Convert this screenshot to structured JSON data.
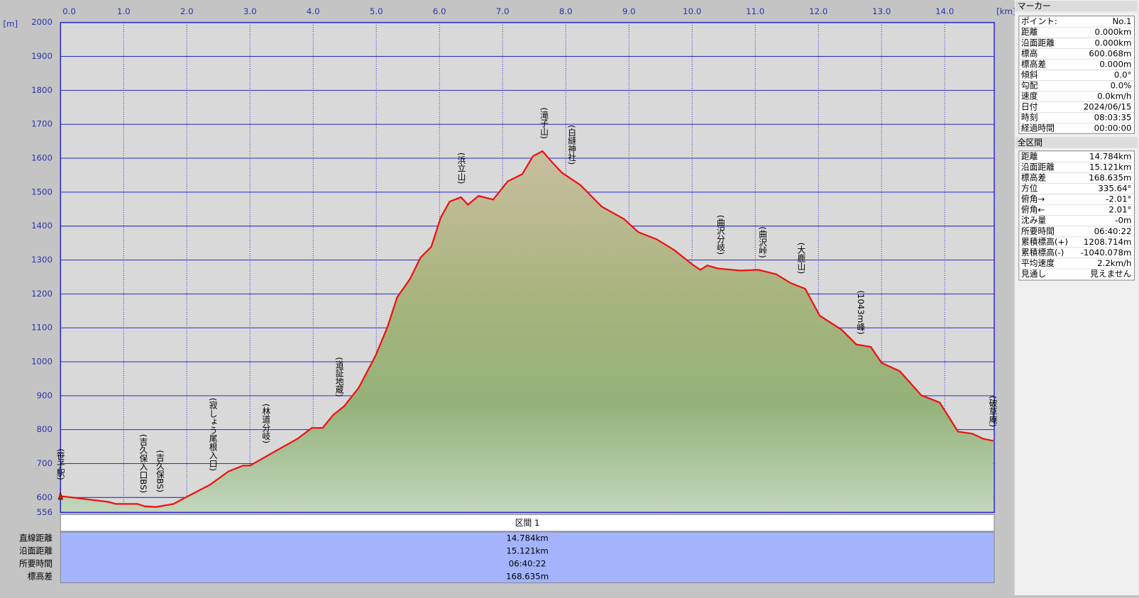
{
  "chart_data": {
    "type": "area",
    "x_unit": "[km]",
    "y_unit": "[m]",
    "x": [
      0,
      0.18,
      0.76,
      0.87,
      1.22,
      1.33,
      1.51,
      1.79,
      2.0,
      2.37,
      2.66,
      2.89,
      3.0,
      3.34,
      3.75,
      3.98,
      4.15,
      4.32,
      4.49,
      4.72,
      4.99,
      5.18,
      5.33,
      5.53,
      5.7,
      5.87,
      6.02,
      6.16,
      6.34,
      6.45,
      6.62,
      6.85,
      7.08,
      7.31,
      7.48,
      7.63,
      7.77,
      7.94,
      8.23,
      8.57,
      8.92,
      9.15,
      9.44,
      9.72,
      10.01,
      10.13,
      10.24,
      10.41,
      10.76,
      11.05,
      11.33,
      11.56,
      11.79,
      12.02,
      12.37,
      12.6,
      12.83,
      13.0,
      13.29,
      13.63,
      13.92,
      14.21,
      14.44,
      14.61,
      14.77
    ],
    "values": [
      604,
      600,
      587,
      581,
      581,
      574,
      572,
      581,
      602,
      638,
      677,
      694,
      694,
      730,
      773,
      805,
      805,
      844,
      869,
      923,
      1019,
      1104,
      1190,
      1243,
      1307,
      1339,
      1425,
      1472,
      1485,
      1463,
      1489,
      1478,
      1532,
      1553,
      1606,
      1621,
      1591,
      1557,
      1521,
      1457,
      1421,
      1382,
      1361,
      1329,
      1286,
      1271,
      1284,
      1275,
      1269,
      1271,
      1258,
      1232,
      1215,
      1136,
      1094,
      1051,
      1044,
      997,
      972,
      901,
      880,
      794,
      788,
      773,
      767
    ],
    "color": "#ee1111",
    "xlim": [
      0,
      14.784
    ],
    "ylim": [
      556,
      2000
    ],
    "xticks": [
      {
        "value": 0,
        "label": "0.0"
      },
      {
        "value": 1,
        "label": "1.0"
      },
      {
        "value": 2,
        "label": "2.0"
      },
      {
        "value": 3,
        "label": "3.0"
      },
      {
        "value": 4,
        "label": "4.0"
      },
      {
        "value": 5,
        "label": "5.0"
      },
      {
        "value": 6,
        "label": "6.0"
      },
      {
        "value": 7,
        "label": "7.0"
      },
      {
        "value": 8,
        "label": "8.0"
      },
      {
        "value": 9,
        "label": "9.0"
      },
      {
        "value": 10,
        "label": "10.0"
      },
      {
        "value": 11,
        "label": "11.0"
      },
      {
        "value": 12,
        "label": "12.0"
      },
      {
        "value": 13,
        "label": "13.0"
      },
      {
        "value": 14,
        "label": "14.0"
      }
    ],
    "yticks": [
      556,
      600,
      700,
      800,
      900,
      1000,
      1100,
      1200,
      1300,
      1400,
      1500,
      1600,
      1700,
      1800,
      1900,
      2000
    ],
    "grid": true,
    "annotations": [
      "(笹子駅)",
      "(吉久保入口BS)",
      "(吉久保BS)",
      "(寂しょう尾根入口)",
      "(林道分岐)",
      "(道証地蔵)",
      "(浜立山)",
      "(滝子山)",
      "(白縫神社)",
      "(曲沢分岐)",
      "(曲沢峠)",
      "(大鹿山)",
      "(1043m峰)",
      "(破草庵)"
    ]
  },
  "section_table": {
    "header": "区間 1",
    "rows": [
      [
        "直線距離",
        "14.784km"
      ],
      [
        "沿面距離",
        "15.121km"
      ],
      [
        "所要時間",
        "06:40:22"
      ],
      [
        "標高差",
        "168.635m"
      ]
    ]
  },
  "marker_panel": {
    "title": "マーカー",
    "rows": [
      [
        "ポイント:",
        "No.1"
      ],
      [
        "距離",
        "0.000km"
      ],
      [
        "沿面距離",
        "0.000km"
      ],
      [
        "標高",
        "600.068m"
      ],
      [
        "標高差",
        "0.000m"
      ],
      [
        "傾斜",
        "0.0°"
      ],
      [
        "勾配",
        "0.0%"
      ],
      [
        "速度",
        "0.0km/h"
      ],
      [
        "日付",
        "2024/06/15"
      ],
      [
        "時刻",
        "08:03:35"
      ],
      [
        "経過時間",
        "00:00:00"
      ]
    ]
  },
  "total_panel": {
    "title": "全区間",
    "rows": [
      [
        "距離",
        "14.784km"
      ],
      [
        "沿面距離",
        "15.121km"
      ],
      [
        "標高差",
        "168.635m"
      ],
      [
        "方位",
        "335.64°"
      ],
      [
        "俯角→",
        "-2.01°"
      ],
      [
        "俯角←",
        "2.01°"
      ],
      [
        "沈み量",
        "-0m"
      ],
      [
        "所要時間",
        "06:40:22"
      ],
      [
        "累積標高(+)",
        "1208.714m"
      ],
      [
        "累積標高(-)",
        "-1040.078m"
      ],
      [
        "平均速度",
        "2.2km/h"
      ],
      [
        "見通し",
        "見えません"
      ]
    ]
  }
}
